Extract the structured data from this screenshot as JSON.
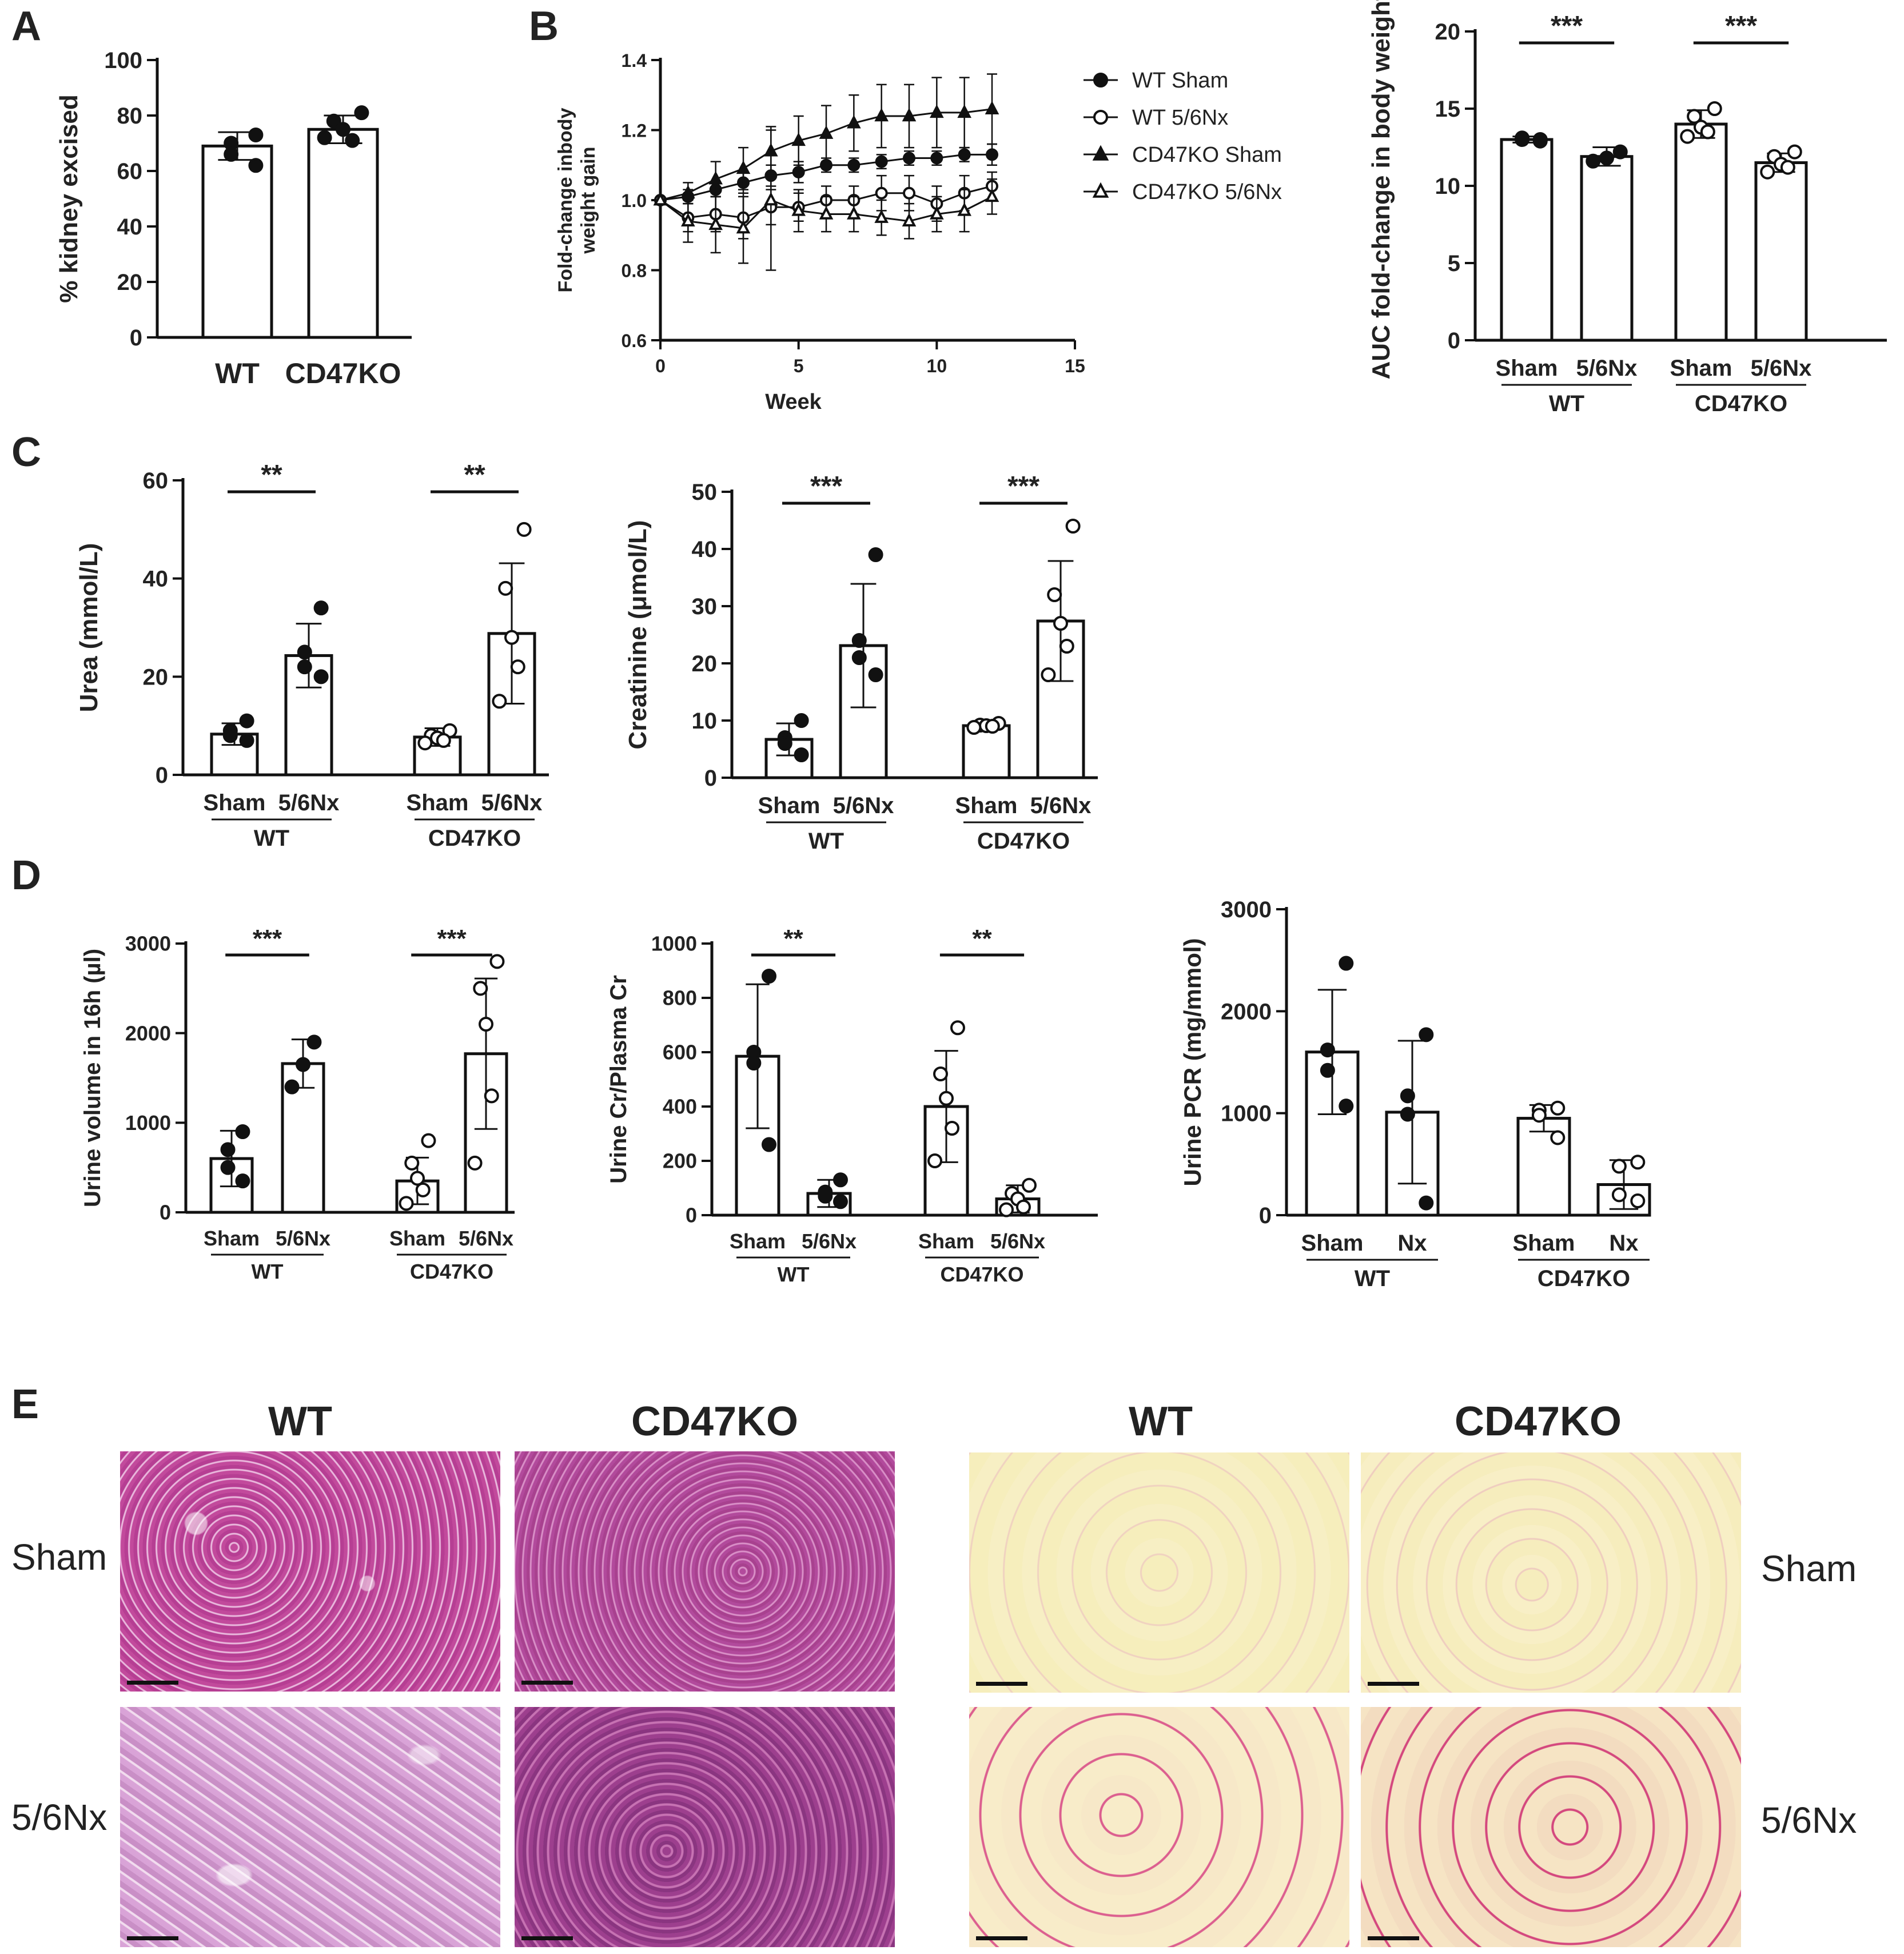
{
  "panel_letters": {
    "a": "A",
    "b": "B",
    "c": "C",
    "d": "D",
    "e": "E"
  },
  "chart_data": [
    {
      "id": "A",
      "type": "bar",
      "ylabel": "% kidney excised",
      "ylim": [
        0,
        100
      ],
      "yticks": [
        "0",
        "20",
        "40",
        "60",
        "80",
        "100"
      ],
      "categories": [
        "WT",
        "CD47KO"
      ],
      "values": [
        69,
        75
      ],
      "errors": [
        5,
        5
      ],
      "points": [
        [
          73,
          70,
          66,
          62
        ],
        [
          81,
          78,
          75,
          71,
          72
        ]
      ],
      "filled": [
        true,
        true
      ]
    },
    {
      "id": "B1",
      "type": "line",
      "xlabel": "Week",
      "ylabel": "Fold-change inbody weight gain",
      "xlim": [
        0,
        15
      ],
      "ylim": [
        0.6,
        1.4
      ],
      "xticks": [
        "0",
        "5",
        "10",
        "15"
      ],
      "yticks": [
        "0.6",
        "0.8",
        "1.0",
        "1.2",
        "1.4"
      ],
      "x": [
        0,
        1,
        2,
        3,
        4,
        5,
        6,
        7,
        8,
        9,
        10,
        11,
        12
      ],
      "series": [
        {
          "name": "WT Sham",
          "marker": "filled-circle",
          "values": [
            1.0,
            1.01,
            1.03,
            1.05,
            1.07,
            1.08,
            1.1,
            1.1,
            1.11,
            1.12,
            1.12,
            1.13,
            1.13
          ],
          "errors": [
            0,
            0.02,
            0.02,
            0.03,
            0.03,
            0.03,
            0.02,
            0.02,
            0.02,
            0.02,
            0.02,
            0.02,
            0.03
          ]
        },
        {
          "name": "WT 5/6Nx",
          "marker": "open-circle",
          "values": [
            1.0,
            0.95,
            0.96,
            0.95,
            0.98,
            0.98,
            1.0,
            1.0,
            1.02,
            1.02,
            0.99,
            1.02,
            1.04
          ],
          "errors": [
            0,
            0.04,
            0.05,
            0.06,
            0.05,
            0.04,
            0.04,
            0.04,
            0.05,
            0.05,
            0.05,
            0.05,
            0.04
          ]
        },
        {
          "name": "CD47KO Sham",
          "marker": "filled-triangle",
          "values": [
            1.0,
            1.02,
            1.06,
            1.09,
            1.14,
            1.17,
            1.19,
            1.22,
            1.24,
            1.24,
            1.25,
            1.25,
            1.26
          ],
          "errors": [
            0,
            0.03,
            0.05,
            0.06,
            0.07,
            0.07,
            0.08,
            0.08,
            0.09,
            0.09,
            0.1,
            0.1,
            0.1
          ]
        },
        {
          "name": "CD47KO 5/6Nx",
          "marker": "open-triangle",
          "values": [
            1.0,
            0.94,
            0.93,
            0.92,
            1.0,
            0.97,
            0.96,
            0.96,
            0.95,
            0.94,
            0.96,
            0.97,
            1.01
          ],
          "errors": [
            0,
            0.06,
            0.08,
            0.1,
            0.2,
            0.06,
            0.05,
            0.05,
            0.05,
            0.05,
            0.05,
            0.06,
            0.05
          ]
        }
      ]
    },
    {
      "id": "B2",
      "type": "bar",
      "ylabel": "AUC fold-change in body weight",
      "ylim": [
        0,
        20
      ],
      "yticks": [
        "0",
        "5",
        "10",
        "15",
        "20"
      ],
      "categories": [
        "Sham",
        "5/6Nx",
        "Sham",
        "5/6Nx"
      ],
      "groups": [
        "WT",
        "CD47KO"
      ],
      "values": [
        13.0,
        11.9,
        14.0,
        11.5
      ],
      "errors": [
        0.2,
        0.6,
        0.9,
        0.6
      ],
      "points": [
        [
          13.0,
          13.1,
          13.0,
          12.9
        ],
        [
          12.2,
          11.8,
          11.6
        ],
        [
          15.0,
          14.5,
          13.8,
          13.5,
          13.2
        ],
        [
          12.2,
          11.9,
          11.4,
          11.2,
          10.9
        ]
      ],
      "filled": [
        true,
        true,
        false,
        false
      ],
      "significance": [
        "***",
        "***"
      ]
    },
    {
      "id": "C1",
      "type": "bar",
      "ylabel": "Urea (mmol/L)",
      "ylim": [
        0,
        60
      ],
      "yticks": [
        "0",
        "20",
        "40",
        "60"
      ],
      "categories": [
        "Sham",
        "5/6Nx",
        "Sham",
        "5/6Nx"
      ],
      "groups": [
        "WT",
        "CD47KO"
      ],
      "values": [
        8.3,
        24.3,
        7.7,
        28.8
      ],
      "errors": [
        2.2,
        6.5,
        1.8,
        14.3
      ],
      "points": [
        [
          11,
          9,
          8,
          7
        ],
        [
          34,
          25,
          22,
          20
        ],
        [
          9,
          8,
          7.5,
          7,
          6.5
        ],
        [
          50,
          38,
          28,
          22,
          15
        ]
      ],
      "filled": [
        true,
        true,
        false,
        false
      ],
      "significance": [
        "**",
        "**"
      ]
    },
    {
      "id": "C2",
      "type": "bar",
      "ylabel": "Creatinine (μmol/L)",
      "ylim": [
        0,
        50
      ],
      "yticks": [
        "0",
        "10",
        "20",
        "30",
        "40",
        "50"
      ],
      "categories": [
        "Sham",
        "5/6Nx",
        "Sham",
        "5/6Nx"
      ],
      "groups": [
        "WT",
        "CD47KO"
      ],
      "values": [
        6.7,
        23.1,
        9.1,
        27.4
      ],
      "errors": [
        2.8,
        10.8,
        0.5,
        10.5
      ],
      "points": [
        [
          10,
          7,
          6,
          4
        ],
        [
          39,
          24,
          21,
          18
        ],
        [
          9.5,
          9.2,
          9.1,
          9.0,
          8.8
        ],
        [
          44,
          32,
          27,
          23,
          18
        ]
      ],
      "filled": [
        true,
        true,
        false,
        false
      ],
      "significance": [
        "***",
        "***"
      ]
    },
    {
      "id": "D1",
      "type": "bar",
      "ylabel": "Urine volume in 16h (µl)",
      "ylim": [
        0,
        3000
      ],
      "yticks": [
        "0",
        "1000",
        "2000",
        "3000"
      ],
      "categories": [
        "Sham",
        "5/6Nx",
        "Sham",
        "5/6Nx"
      ],
      "groups": [
        "WT",
        "CD47KO"
      ],
      "values": [
        600,
        1660,
        350,
        1770
      ],
      "errors": [
        310,
        270,
        260,
        840
      ],
      "points": [
        [
          900,
          700,
          500,
          350
        ],
        [
          1900,
          1650,
          1400
        ],
        [
          800,
          550,
          380,
          250,
          100
        ],
        [
          2800,
          2500,
          2100,
          1300,
          550
        ]
      ],
      "filled": [
        true,
        true,
        false,
        false
      ],
      "significance": [
        "***",
        "***"
      ]
    },
    {
      "id": "D2",
      "type": "bar",
      "ylabel": "Urine Cr/Plasma Cr",
      "ylim": [
        0,
        1000
      ],
      "yticks": [
        "0",
        "200",
        "400",
        "600",
        "800",
        "1000"
      ],
      "categories": [
        "Sham",
        "5/6Nx",
        "Sham",
        "5/6Nx"
      ],
      "groups": [
        "WT",
        "CD47KO"
      ],
      "values": [
        585,
        80,
        400,
        60
      ],
      "errors": [
        265,
        50,
        205,
        50
      ],
      "points": [
        [
          880,
          600,
          560,
          260
        ],
        [
          130,
          85,
          70,
          50
        ],
        [
          690,
          520,
          430,
          320,
          200
        ],
        [
          110,
          80,
          60,
          30,
          20
        ]
      ],
      "filled": [
        true,
        true,
        false,
        false
      ],
      "significance": [
        "**",
        "**"
      ]
    },
    {
      "id": "D3",
      "type": "bar",
      "ylabel": "Urine PCR (mg/mmol)",
      "ylim": [
        0,
        3000
      ],
      "yticks": [
        "0",
        "1000",
        "2000",
        "3000"
      ],
      "categories": [
        "Sham",
        "Nx",
        "Sham",
        "Nx"
      ],
      "groups": [
        "WT",
        "CD47KO"
      ],
      "values": [
        1600,
        1010,
        950,
        300
      ],
      "errors": [
        610,
        700,
        130,
        240
      ],
      "points": [
        [
          2470,
          1620,
          1420,
          1070
        ],
        [
          1770,
          1170,
          990,
          120
        ],
        [
          1050,
          1030,
          980,
          760
        ],
        [
          520,
          480,
          200,
          140
        ]
      ],
      "filled": [
        true,
        true,
        false,
        false
      ],
      "significance": []
    }
  ],
  "panelE": {
    "col_wt": "WT",
    "col_ko": "CD47KO",
    "row_sham": "Sham",
    "row_nx": "5/6Nx"
  }
}
